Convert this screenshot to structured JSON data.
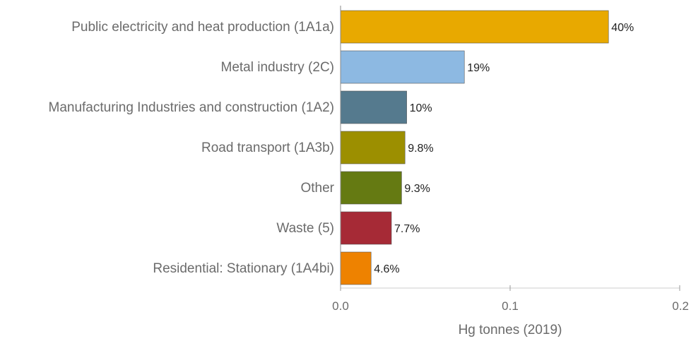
{
  "chart_data": {
    "type": "bar",
    "orientation": "horizontal",
    "xlabel": "Hg tonnes  (2019)",
    "xlim": [
      0,
      0.2
    ],
    "xticks": [
      {
        "value": 0.0,
        "label": "0.0"
      },
      {
        "value": 0.1,
        "label": "0.1"
      },
      {
        "value": 0.2,
        "label": "0.2"
      }
    ],
    "grid": false,
    "legend": "none",
    "bars": [
      {
        "category": "Public electricity and heat production (1A1a)",
        "value": 0.158,
        "label": "40%",
        "color": "#E8A900"
      },
      {
        "category": "Metal industry (2C)",
        "value": 0.073,
        "label": "19%",
        "color": "#8DB9E2"
      },
      {
        "category": "Manufacturing Industries and construction (1A2)",
        "value": 0.039,
        "label": "10%",
        "color": "#557A8E"
      },
      {
        "category": "Road transport (1A3b)",
        "value": 0.038,
        "label": "9.8%",
        "color": "#9C8F00"
      },
      {
        "category": "Other",
        "value": 0.036,
        "label": "9.3%",
        "color": "#657A12"
      },
      {
        "category": "Waste (5)",
        "value": 0.03,
        "label": "7.7%",
        "color": "#A62A36"
      },
      {
        "category": "Residential: Stationary (1A4bi)",
        "value": 0.018,
        "label": "4.6%",
        "color": "#EE8200"
      }
    ]
  }
}
